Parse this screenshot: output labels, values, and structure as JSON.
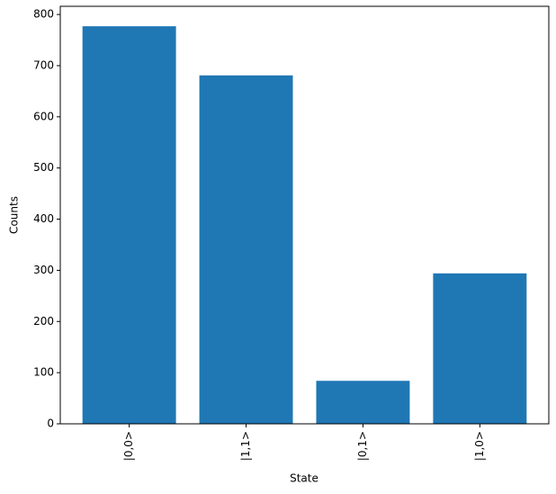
{
  "chart_data": {
    "type": "bar",
    "x_label": "State",
    "y_label": "Counts",
    "categories": [
      "|0,0>",
      "|1,1>",
      "|0,1>",
      "|1,0>"
    ],
    "values": [
      777,
      681,
      84,
      294
    ],
    "color": "#1f77b4",
    "ylim": [
      0,
      816
    ],
    "yticks": [
      0,
      100,
      200,
      300,
      400,
      500,
      600,
      700,
      800
    ],
    "grid": false
  }
}
